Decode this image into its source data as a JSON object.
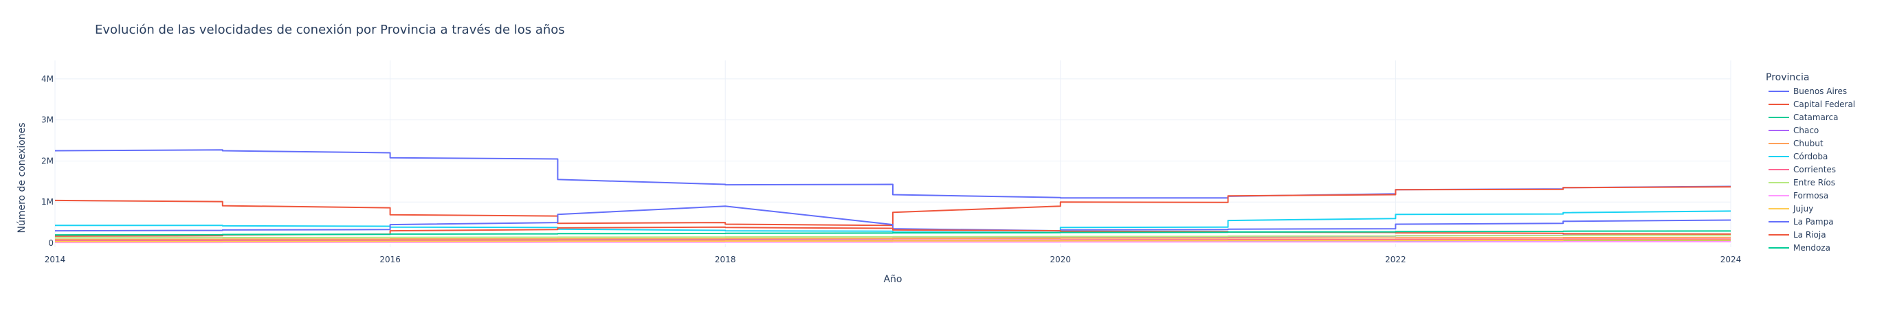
{
  "chart_data": {
    "type": "line",
    "title": "Evolución de las velocidades de conexión por Provincia a través de los años",
    "xlabel": "Año",
    "ylabel": "Número de conexiones",
    "xlim": [
      2014,
      2024
    ],
    "ylim": [
      -100000,
      4450000
    ],
    "x_ticks": [
      2014,
      2016,
      2018,
      2020,
      2022,
      2024
    ],
    "x_tick_labels": [
      "2014",
      "2016",
      "2018",
      "2020",
      "2022",
      "2024"
    ],
    "y_ticks": [
      0,
      1000000,
      2000000,
      3000000,
      4000000
    ],
    "y_tick_labels": [
      "0",
      "1M",
      "2M",
      "3M",
      "4M"
    ],
    "grid": true,
    "legend_title": "Provincia",
    "legend_position": "right",
    "series": [
      {
        "name": "Buenos Aires",
        "color": "#636efa",
        "x": [
          2014,
          2015,
          2015,
          2016,
          2016,
          2017,
          2017,
          2018,
          2018,
          2019,
          2019,
          2020,
          2020,
          2021,
          2021,
          2022,
          2022,
          2023,
          2023,
          2024
        ],
        "y": [
          2250000,
          2270000,
          2250000,
          2200000,
          2080000,
          2050000,
          1550000,
          1430000,
          1420000,
          1430000,
          1180000,
          1110000,
          1100000,
          1100000,
          1140000,
          1200000,
          1300000,
          1320000,
          1350000,
          1380000
        ]
      },
      {
        "name": "Capital Federal",
        "color": "#ef553b",
        "x": [
          2014,
          2015,
          2015,
          2016,
          2016,
          2017,
          2017,
          2018,
          2018,
          2019,
          2019,
          2020,
          2020,
          2021,
          2021,
          2022,
          2022,
          2023,
          2023,
          2024
        ],
        "y": [
          1040000,
          1010000,
          910000,
          860000,
          690000,
          660000,
          480000,
          500000,
          460000,
          430000,
          750000,
          900000,
          1000000,
          990000,
          1150000,
          1180000,
          1300000,
          1310000,
          1350000,
          1370000
        ]
      },
      {
        "name": "Catamarca",
        "color": "#00cc96",
        "x": [
          2014,
          2015,
          2015,
          2016,
          2016,
          2017,
          2017,
          2018,
          2018,
          2019,
          2019,
          2020,
          2020,
          2021,
          2021,
          2022,
          2022,
          2023,
          2023,
          2024
        ],
        "y": [
          20000,
          22000,
          25000,
          27000,
          28000,
          30000,
          32000,
          35000,
          38000,
          40000,
          42000,
          45000,
          48000,
          50000,
          52000,
          55000,
          58000,
          60000,
          62000,
          64000
        ]
      },
      {
        "name": "Chaco",
        "color": "#ab63fa",
        "x": [
          2014,
          2015,
          2015,
          2016,
          2016,
          2017,
          2017,
          2018,
          2018,
          2019,
          2019,
          2020,
          2020,
          2021,
          2021,
          2022,
          2022,
          2023,
          2023,
          2024
        ],
        "y": [
          60000,
          65000,
          70000,
          75000,
          80000,
          85000,
          90000,
          95000,
          100000,
          110000,
          120000,
          130000,
          140000,
          150000,
          160000,
          170000,
          180000,
          190000,
          200000,
          210000
        ]
      },
      {
        "name": "Chubut",
        "color": "#ffa15a",
        "x": [
          2014,
          2015,
          2015,
          2016,
          2016,
          2017,
          2017,
          2018,
          2018,
          2019,
          2019,
          2020,
          2020,
          2021,
          2021,
          2022,
          2022,
          2023,
          2023,
          2024
        ],
        "y": [
          90000,
          92000,
          95000,
          98000,
          100000,
          102000,
          105000,
          107000,
          110000,
          112000,
          115000,
          118000,
          120000,
          122000,
          125000,
          128000,
          130000,
          132000,
          135000,
          138000
        ]
      },
      {
        "name": "Córdoba",
        "color": "#19d3f3",
        "x": [
          2014,
          2015,
          2015,
          2016,
          2016,
          2017,
          2017,
          2018,
          2018,
          2019,
          2019,
          2020,
          2020,
          2021,
          2021,
          2022,
          2022,
          2023,
          2023,
          2024
        ],
        "y": [
          430000,
          430000,
          420000,
          410000,
          390000,
          380000,
          340000,
          310000,
          300000,
          290000,
          270000,
          260000,
          380000,
          390000,
          550000,
          600000,
          700000,
          710000,
          740000,
          780000
        ]
      },
      {
        "name": "Corrientes",
        "color": "#ff6692",
        "x": [
          2014,
          2015,
          2015,
          2016,
          2016,
          2017,
          2017,
          2018,
          2018,
          2019,
          2019,
          2020,
          2020,
          2021,
          2021,
          2022,
          2022,
          2023,
          2023,
          2024
        ],
        "y": [
          50000,
          52000,
          55000,
          57000,
          60000,
          62000,
          65000,
          67000,
          70000,
          72000,
          75000,
          78000,
          80000,
          82000,
          85000,
          88000,
          90000,
          92000,
          95000,
          98000
        ]
      },
      {
        "name": "Entre Ríos",
        "color": "#b6e880",
        "x": [
          2014,
          2015,
          2015,
          2016,
          2016,
          2017,
          2017,
          2018,
          2018,
          2019,
          2019,
          2020,
          2020,
          2021,
          2021,
          2022,
          2022,
          2023,
          2023,
          2024
        ],
        "y": [
          130000,
          132000,
          135000,
          138000,
          140000,
          142000,
          145000,
          148000,
          150000,
          152000,
          155000,
          158000,
          160000,
          165000,
          170000,
          175000,
          180000,
          185000,
          190000,
          195000
        ]
      },
      {
        "name": "Formosa",
        "color": "#ff97ff",
        "x": [
          2014,
          2015,
          2015,
          2016,
          2016,
          2017,
          2017,
          2018,
          2018,
          2019,
          2019,
          2020,
          2020,
          2021,
          2021,
          2022,
          2022,
          2023,
          2023,
          2024
        ],
        "y": [
          15000,
          16000,
          17000,
          18000,
          19000,
          20000,
          21000,
          22000,
          23000,
          24000,
          25000,
          26000,
          27000,
          28000,
          29000,
          30000,
          31000,
          32000,
          33000,
          34000
        ]
      },
      {
        "name": "Jujuy",
        "color": "#fecb52",
        "x": [
          2014,
          2015,
          2015,
          2016,
          2016,
          2017,
          2017,
          2018,
          2018,
          2019,
          2019,
          2020,
          2020,
          2021,
          2021,
          2022,
          2022,
          2023,
          2023,
          2024
        ],
        "y": [
          35000,
          36000,
          38000,
          40000,
          42000,
          44000,
          46000,
          48000,
          50000,
          52000,
          54000,
          56000,
          58000,
          60000,
          62000,
          64000,
          66000,
          68000,
          70000,
          72000
        ]
      },
      {
        "name": "La Pampa",
        "color": "#636efa",
        "x": [
          2014,
          2015,
          2015,
          2016,
          2016,
          2017,
          2017,
          2018,
          2018,
          2019,
          2019,
          2020,
          2020,
          2021,
          2021,
          2022,
          2022,
          2023,
          2023,
          2024
        ],
        "y": [
          300000,
          310000,
          320000,
          330000,
          450000,
          500000,
          700000,
          900000,
          900000,
          450000,
          350000,
          300000,
          320000,
          330000,
          340000,
          350000,
          460000,
          480000,
          530000,
          560000
        ]
      },
      {
        "name": "La Rioja",
        "color": "#ef553b",
        "x": [
          2014,
          2015,
          2015,
          2016,
          2016,
          2017,
          2017,
          2018,
          2018,
          2019,
          2019,
          2020,
          2020,
          2021,
          2021,
          2022,
          2022,
          2023,
          2023,
          2024
        ],
        "y": [
          170000,
          180000,
          200000,
          220000,
          300000,
          330000,
          370000,
          390000,
          380000,
          360000,
          320000,
          300000,
          290000,
          280000,
          270000,
          260000,
          250000,
          240000,
          230000,
          220000
        ]
      },
      {
        "name": "Mendoza",
        "color": "#00cc96",
        "x": [
          2014,
          2015,
          2015,
          2016,
          2016,
          2017,
          2017,
          2018,
          2018,
          2019,
          2019,
          2020,
          2020,
          2021,
          2021,
          2022,
          2022,
          2023,
          2023,
          2024
        ],
        "y": [
          200000,
          205000,
          210000,
          215000,
          220000,
          225000,
          230000,
          235000,
          240000,
          245000,
          250000,
          255000,
          260000,
          265000,
          270000,
          275000,
          280000,
          285000,
          290000,
          295000
        ]
      }
    ]
  }
}
